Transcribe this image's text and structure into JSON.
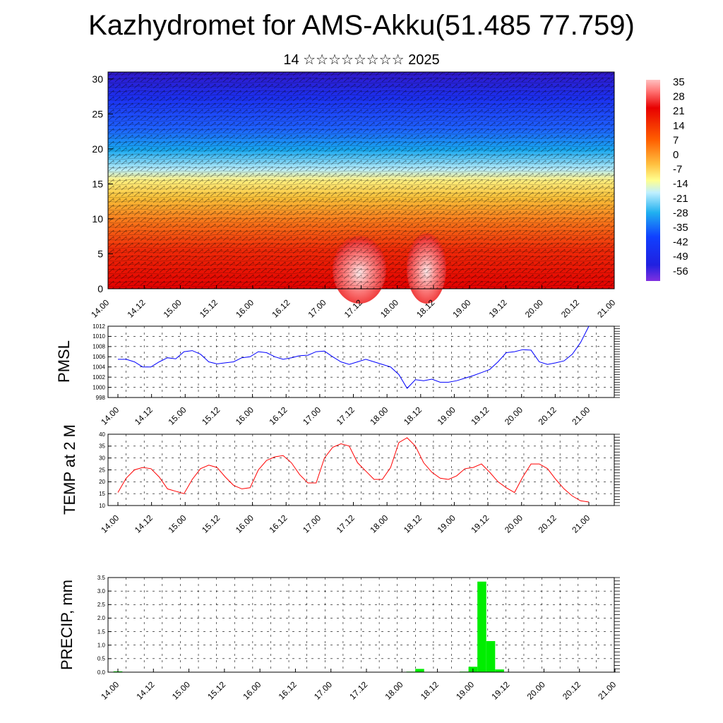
{
  "title": "Kazhydromet for AMS-Akku(51.485 77.759)",
  "subtitle": "14 ☆☆☆☆☆☆☆☆ 2025",
  "x_ticks": [
    "14.00",
    "14.12",
    "15.00",
    "15.12",
    "16.00",
    "16.12",
    "17.00",
    "17.12",
    "18.00",
    "18.12",
    "19.00",
    "19.12",
    "20.00",
    "20.12",
    "21.00"
  ],
  "colorbar": {
    "labels": [
      "35",
      "28",
      "21",
      "14",
      "7",
      "0",
      "-7",
      "-14",
      "-21",
      "-28",
      "-35",
      "-42",
      "-49",
      "-56"
    ]
  },
  "chart_data": [
    {
      "type": "heatmap",
      "title": "",
      "ylabel": "",
      "ylim": [
        0,
        31
      ],
      "y_ticks": [
        "0",
        "5",
        "10",
        "15",
        "20",
        "25",
        "30"
      ],
      "x_ticks": [
        "14.00",
        "14.12",
        "15.00",
        "15.12",
        "16.00",
        "16.12",
        "17.00",
        "17.12",
        "18.00",
        "18.12",
        "19.00",
        "19.12",
        "20.00",
        "20.12",
        "21.00"
      ],
      "color_scale": {
        "min": -56,
        "max": 35
      },
      "temperature_by_level": [
        {
          "level": 0,
          "value": 25
        },
        {
          "level": 5,
          "value": 20
        },
        {
          "level": 10,
          "value": 12
        },
        {
          "level": 15,
          "value": -6
        },
        {
          "level": 18,
          "value": -22
        },
        {
          "level": 20,
          "value": -30
        },
        {
          "level": 25,
          "value": -44
        },
        {
          "level": 30,
          "value": -54
        }
      ],
      "warm_cores": [
        {
          "x": "17.12",
          "max": 35
        },
        {
          "x": "18.06",
          "max": 35
        }
      ],
      "colors": {
        "warm": "#ff0000",
        "cold": "#2020ff",
        "mid": "#ffff80"
      }
    },
    {
      "type": "line",
      "ylabel": "PMSL",
      "ylim": [
        998,
        1012
      ],
      "y_ticks": [
        "998",
        "1000",
        "1002",
        "1004",
        "1006",
        "1008",
        "1010",
        "1012"
      ],
      "color": "#0000ff",
      "series": [
        {
          "values": [
            1005.5,
            1005.5,
            1005,
            1004,
            1004,
            1005,
            1005.8,
            1005.6,
            1007,
            1007.2,
            1006.5,
            1005,
            1004.6,
            1004.8,
            1005,
            1005.8,
            1006,
            1007,
            1006.8,
            1006,
            1005.5,
            1005.8,
            1006.2,
            1006.3,
            1007,
            1007.1,
            1006,
            1005,
            1004.5,
            1005,
            1005.5,
            1005,
            1004.5,
            1004,
            1002.5,
            999.8,
            1001.5,
            1001.3,
            1001.6,
            1001,
            1001,
            1001.3,
            1001.8,
            1002.3,
            1002.9,
            1003.5,
            1005,
            1006.8,
            1007,
            1007.4,
            1007.3,
            1005,
            1004.5,
            1004.8,
            1005.2,
            1006.5,
            1008.8,
            1012
          ]
        }
      ]
    },
    {
      "type": "line",
      "ylabel": "TEMP at 2 M",
      "ylim": [
        10,
        40
      ],
      "y_ticks": [
        "10",
        "15",
        "20",
        "25",
        "30",
        "35",
        "40"
      ],
      "color": "#ff0000",
      "series": [
        {
          "values": [
            15.5,
            21.5,
            25,
            26,
            25.5,
            22,
            17,
            16,
            15,
            21,
            25.5,
            27,
            26,
            22,
            18.5,
            17,
            17.5,
            25,
            29,
            30.5,
            31,
            28,
            23,
            19.5,
            19.5,
            30,
            34.5,
            36,
            35,
            28,
            24.5,
            21,
            21,
            26,
            36.5,
            38.5,
            35,
            28,
            24,
            21.5,
            21,
            22.5,
            25.5,
            26,
            27.5,
            24,
            20,
            17.5,
            15.5,
            22,
            27.5,
            27.5,
            25.5,
            21,
            17,
            14,
            12,
            11.5
          ]
        }
      ]
    },
    {
      "type": "bar",
      "ylabel": "PRECIP, mm",
      "ylim": [
        0,
        3.5
      ],
      "y_ticks": [
        "0.0",
        "0.5",
        "1.0",
        "1.5",
        "2.0",
        "2.5",
        "3.0",
        "3.5"
      ],
      "color": "#00ee00",
      "bars": [
        {
          "x": 14.0,
          "value": 0.03
        },
        {
          "x": 18.125,
          "value": 0.02
        },
        {
          "x": 18.25,
          "value": 0.12
        },
        {
          "x": 18.875,
          "value": 0.02
        },
        {
          "x": 19.0,
          "value": 0.2
        },
        {
          "x": 19.125,
          "value": 3.35
        },
        {
          "x": 19.25,
          "value": 1.15
        },
        {
          "x": 19.375,
          "value": 0.1
        }
      ]
    }
  ]
}
